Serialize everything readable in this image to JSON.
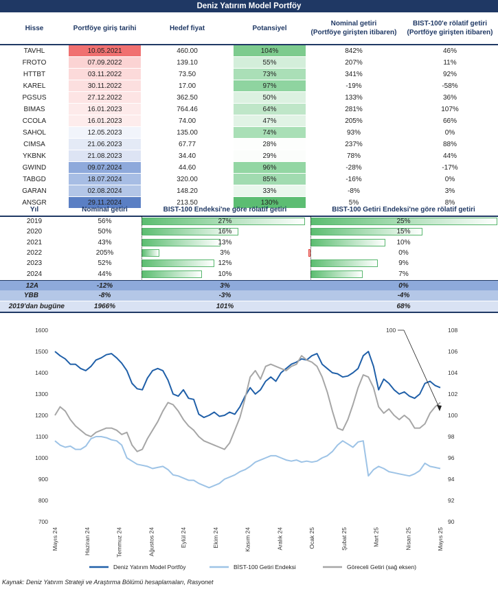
{
  "title": "Deniz Yatırım Model Portföy",
  "table1": {
    "headers": {
      "hisse": "Hisse",
      "giris": "Portföye giriş tarihi",
      "hedef": "Hedef fiyat",
      "potansiyel": "Potansiyel",
      "nominal_l1": "Nominal getiri",
      "nominal_l2": "(Portföye girişten itibaren)",
      "bist_l1": "BIST-100'e rölatif getiri",
      "bist_l2": "(Portföye girişten itibaren)"
    },
    "rows": [
      {
        "hisse": "TAVHL",
        "tarih": "10.05.2021",
        "hedef": "460.00",
        "potansiyel": "104%",
        "nominal": "842%",
        "rolatif": "46%"
      },
      {
        "hisse": "FROTO",
        "tarih": "07.09.2022",
        "hedef": "139.10",
        "potansiyel": "55%",
        "nominal": "207%",
        "rolatif": "11%"
      },
      {
        "hisse": "HTTBT",
        "tarih": "03.11.2022",
        "hedef": "73.50",
        "potansiyel": "73%",
        "nominal": "341%",
        "rolatif": "92%"
      },
      {
        "hisse": "KAREL",
        "tarih": "30.11.2022",
        "hedef": "17.00",
        "potansiyel": "97%",
        "nominal": "-19%",
        "rolatif": "-58%"
      },
      {
        "hisse": "PGSUS",
        "tarih": "27.12.2022",
        "hedef": "362.50",
        "potansiyel": "50%",
        "nominal": "133%",
        "rolatif": "36%"
      },
      {
        "hisse": "BIMAS",
        "tarih": "16.01.2023",
        "hedef": "764.46",
        "potansiyel": "64%",
        "nominal": "281%",
        "rolatif": "107%"
      },
      {
        "hisse": "CCOLA",
        "tarih": "16.01.2023",
        "hedef": "74.00",
        "potansiyel": "47%",
        "nominal": "205%",
        "rolatif": "66%"
      },
      {
        "hisse": "SAHOL",
        "tarih": "12.05.2023",
        "hedef": "135.00",
        "potansiyel": "74%",
        "nominal": "93%",
        "rolatif": "0%"
      },
      {
        "hisse": "CIMSA",
        "tarih": "21.06.2023",
        "hedef": "67.77",
        "potansiyel": "28%",
        "nominal": "237%",
        "rolatif": "88%"
      },
      {
        "hisse": "YKBNK",
        "tarih": "21.08.2023",
        "hedef": "34.40",
        "potansiyel": "29%",
        "nominal": "78%",
        "rolatif": "44%"
      },
      {
        "hisse": "GWIND",
        "tarih": "09.07.2024",
        "hedef": "44.60",
        "potansiyel": "96%",
        "nominal": "-28%",
        "rolatif": "-17%"
      },
      {
        "hisse": "TABGD",
        "tarih": "18.07.2024",
        "hedef": "320.00",
        "potansiyel": "85%",
        "nominal": "-16%",
        "rolatif": "0%"
      },
      {
        "hisse": "GARAN",
        "tarih": "02.08.2024",
        "hedef": "148.20",
        "potansiyel": "33%",
        "nominal": "-8%",
        "rolatif": "3%"
      },
      {
        "hisse": "ANSGR",
        "tarih": "29.11.2024",
        "hedef": "213.50",
        "potansiyel": "130%",
        "nominal": "5%",
        "rolatif": "8%"
      }
    ],
    "date_colors": [
      "#f07070",
      "#fbd3d3",
      "#fcdada",
      "#fcdfdf",
      "#fde4e4",
      "#fdeaea",
      "#fdecec",
      "#f1f4fb",
      "#e4eaf6",
      "#dde4f4",
      "#8ea9db",
      "#a7bde4",
      "#b3c6e7",
      "#5a7fc4"
    ],
    "pot_colors": [
      "#7dcb8e",
      "#d3eeda",
      "#aadfb7",
      "#8fd4a0",
      "#dcf1e1",
      "#bfe6c8",
      "#e1f3e5",
      "#a9dfb6",
      "#fdfefd",
      "#fbfdfb",
      "#93d6a3",
      "#a1dbb0",
      "#eaf7ed",
      "#5cbd72"
    ]
  },
  "table2": {
    "headers": {
      "yil": "Yıl",
      "nominal": "Nominal getiri",
      "bist": "BIST-100 Endeksi'ne göre rölatif getiri",
      "bistg": "BIST-100 Getiri Endeksi'ne göre rölatif getiri"
    },
    "rows": [
      {
        "yil": "2019",
        "nominal": "56%",
        "bist": "27%",
        "bist_v": 27,
        "bistg": "25%",
        "bistg_v": 25
      },
      {
        "yil": "2020",
        "nominal": "50%",
        "bist": "16%",
        "bist_v": 16,
        "bistg": "15%",
        "bistg_v": 15
      },
      {
        "yil": "2021",
        "nominal": "43%",
        "bist": "13%",
        "bist_v": 13,
        "bistg": "10%",
        "bistg_v": 10
      },
      {
        "yil": "2022",
        "nominal": "205%",
        "bist": "3%",
        "bist_v": 3,
        "bistg": "0%",
        "bistg_v": -0.3
      },
      {
        "yil": "2023",
        "nominal": "52%",
        "bist": "12%",
        "bist_v": 12,
        "bistg": "9%",
        "bistg_v": 9
      },
      {
        "yil": "2024",
        "nominal": "44%",
        "bist": "10%",
        "bist_v": 10,
        "bistg": "7%",
        "bistg_v": 7
      }
    ],
    "summary": [
      {
        "label": "12A",
        "nominal": "-12%",
        "bist": "3%",
        "bistg": "0%",
        "bg": "#8eaadb"
      },
      {
        "label": "YBB",
        "nominal": "-8%",
        "bist": "-3%",
        "bistg": "-4%",
        "bg": "#b4c7e7"
      },
      {
        "label": "2019'dan bugüne",
        "nominal": "1966%",
        "bist": "101%",
        "bistg": "68%",
        "bg": "#d9e2f3"
      }
    ]
  },
  "chart_data": {
    "type": "line",
    "x_ticks": [
      "Mayıs 24",
      "Haziran 24",
      "Temmuz 24",
      "Ağustos 24",
      "Eylül 24",
      "Ekim 24",
      "Kasım 24",
      "Aralık 24",
      "Ocak 25",
      "Şubat 25",
      "Mart 25",
      "Nisan 25",
      "Mayıs 25"
    ],
    "left_axis": {
      "min": 700,
      "max": 1600,
      "step": 100
    },
    "right_axis": {
      "min": 90,
      "max": 108,
      "step": 2
    },
    "annotation": "100",
    "series": [
      {
        "name": "Deniz Yatırım Model Portföy",
        "axis": "left",
        "color": "#1f5fa8",
        "values": [
          1500,
          1480,
          1465,
          1440,
          1440,
          1420,
          1410,
          1430,
          1460,
          1470,
          1485,
          1490,
          1470,
          1445,
          1410,
          1350,
          1325,
          1320,
          1375,
          1410,
          1420,
          1410,
          1365,
          1300,
          1290,
          1320,
          1280,
          1275,
          1205,
          1190,
          1200,
          1215,
          1195,
          1200,
          1215,
          1205,
          1240,
          1290,
          1330,
          1300,
          1320,
          1360,
          1380,
          1360,
          1400,
          1420,
          1440,
          1450,
          1465,
          1460,
          1480,
          1490,
          1440,
          1420,
          1400,
          1395,
          1380,
          1385,
          1400,
          1420,
          1480,
          1500,
          1430,
          1320,
          1370,
          1350,
          1320,
          1300,
          1310,
          1290,
          1280,
          1300,
          1350,
          1360,
          1340,
          1330
        ]
      },
      {
        "name": "BİST-100 Getiri Endeksi",
        "axis": "left",
        "color": "#9dc3e6",
        "values": [
          1080,
          1060,
          1050,
          1055,
          1040,
          1040,
          1055,
          1090,
          1100,
          1100,
          1095,
          1085,
          1080,
          1060,
          1000,
          985,
          970,
          965,
          960,
          950,
          955,
          960,
          945,
          920,
          915,
          905,
          895,
          895,
          880,
          870,
          860,
          870,
          880,
          900,
          910,
          920,
          935,
          945,
          960,
          980,
          990,
          1000,
          1010,
          1010,
          1000,
          990,
          985,
          990,
          980,
          985,
          980,
          985,
          1000,
          1010,
          1030,
          1060,
          1080,
          1065,
          1050,
          1075,
          1080,
          915,
          945,
          960,
          950,
          935,
          930,
          925,
          920,
          915,
          925,
          940,
          975,
          960,
          955,
          950
        ]
      },
      {
        "name": "Göreceli Getiri (sağ eksen)",
        "axis": "right",
        "color": "#a6a6a6",
        "values": [
          100.0,
          100.8,
          100.4,
          99.6,
          99.0,
          98.6,
          98.2,
          98.0,
          98.4,
          98.6,
          98.8,
          98.8,
          98.6,
          98.2,
          98.4,
          97.2,
          96.6,
          96.8,
          97.8,
          98.6,
          99.4,
          100.4,
          101.2,
          101.0,
          100.4,
          99.6,
          99.0,
          98.6,
          98.0,
          97.6,
          97.4,
          97.2,
          97.0,
          96.8,
          97.4,
          98.6,
          99.8,
          101.6,
          103.6,
          104.2,
          103.4,
          104.6,
          104.8,
          104.6,
          104.4,
          104.2,
          104.6,
          104.8,
          105.6,
          105.2,
          105.0,
          104.6,
          103.6,
          102.2,
          100.4,
          98.8,
          98.6,
          99.6,
          101.0,
          102.6,
          103.8,
          103.6,
          102.6,
          100.8,
          100.2,
          100.6,
          100.0,
          99.6,
          100.0,
          99.6,
          98.8,
          98.8,
          99.2,
          100.2,
          100.8,
          101.2
        ]
      }
    ]
  },
  "source": "Kaynak: Deniz Yatırım Strateji ve Araştırma Bölümü hesaplamaları, Rasyonet"
}
